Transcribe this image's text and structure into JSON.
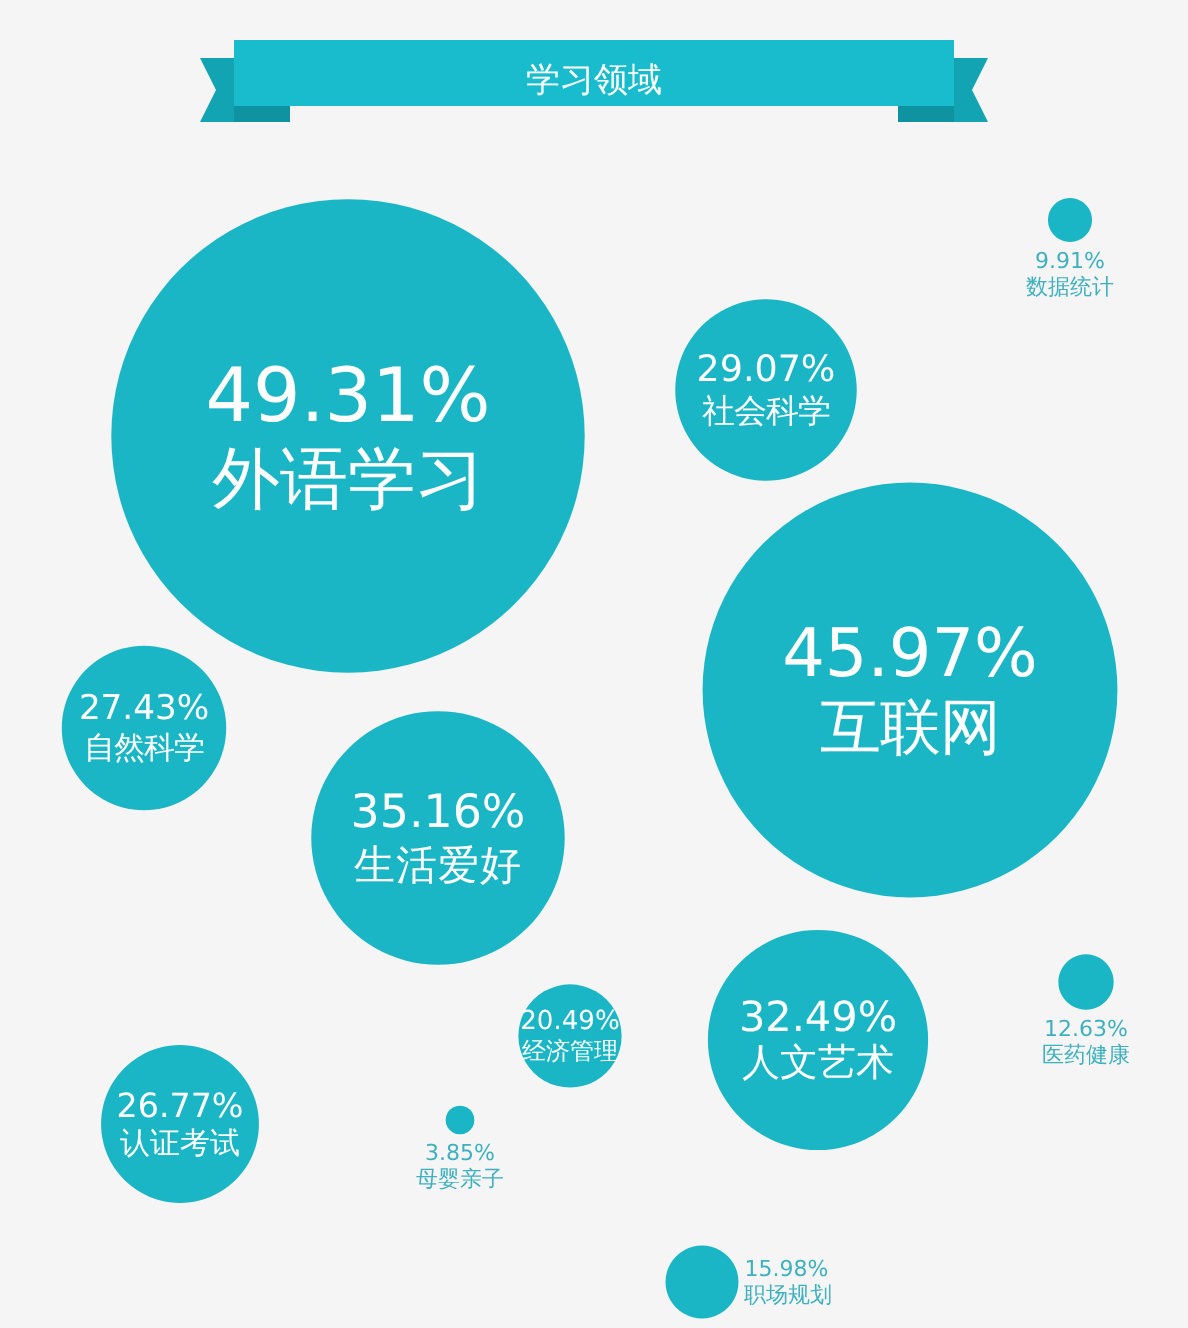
{
  "chart_data": {
    "type": "other",
    "title": "学习领域",
    "categories": [
      "外语学习",
      "数据统计",
      "社会科学",
      "互联网",
      "自然科学",
      "生活爱好",
      "经济管理",
      "人文艺术",
      "医药健康",
      "认证考试",
      "母婴亲子",
      "职场规划"
    ],
    "values": [
      49.31,
      9.91,
      29.07,
      45.97,
      27.43,
      35.16,
      20.49,
      32.49,
      12.63,
      26.77,
      3.85,
      15.98
    ],
    "value_labels": [
      "49.31%",
      "9.91%",
      "29.07%",
      "45.97%",
      "27.43%",
      "35.16%",
      "20.49%",
      "32.49%",
      "12.63%",
      "26.77%",
      "3.85%",
      "15.98%"
    ],
    "color": "#1bb6c6"
  }
}
